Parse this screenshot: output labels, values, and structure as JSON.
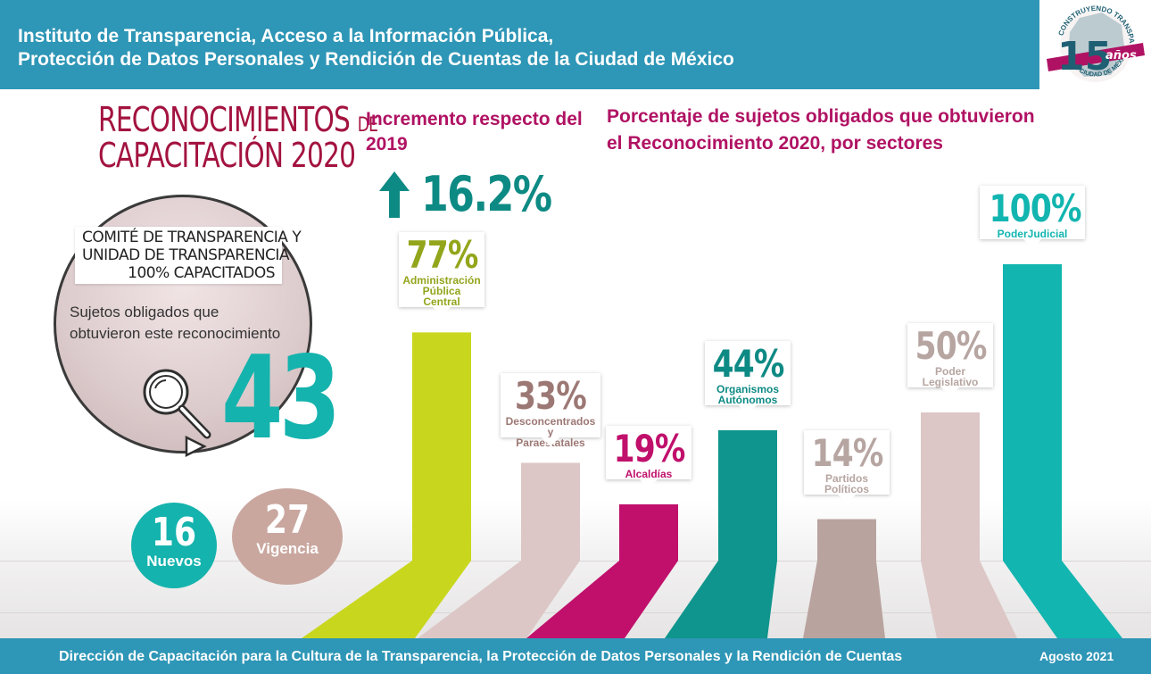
{
  "header": {
    "line1": "Instituto de Transparencia, Acceso a la Información Pública,",
    "line2": "Protección de Datos Personales y Rendición de Cuentas de la Ciudad de México"
  },
  "logo": {
    "number": "15",
    "sub": "años",
    "ring_top": "CONSTRUYENDO TRANSPARENCIA",
    "ring_bottom": "INFO CIUDAD DE MÉXICO"
  },
  "title": {
    "line1": "RECONOCIMIENTOS",
    "de": "DE",
    "line2": "CAPACITACIÓN 2020"
  },
  "committee": {
    "line1": "COMITÉ DE TRANSPARENCIA Y",
    "line2": "UNIDAD DE TRANSPARENCIA",
    "line3": "100% CAPACITADOS"
  },
  "subjects": {
    "line1": "Sujetos obligados que",
    "line2": "obtuvieron este reconocimiento",
    "total": "43"
  },
  "breakdown": {
    "nuevos_value": "16",
    "nuevos_label": "Nuevos",
    "vigencia_value": "27",
    "vigencia_label": "Vigencia"
  },
  "increment": {
    "title": "Incremento respecto del 2019",
    "value": "16.2%"
  },
  "colors": {
    "header": "#2e96b6",
    "accent": "#b01263",
    "teal": "#15b3ad"
  },
  "chart_data": {
    "type": "bar",
    "title": "Porcentaje de sujetos obligados que obtuvieron el Reconocimiento 2020, por sectores",
    "categories": [
      "Administración Pública Central",
      "Desconcentrados y Paraestatales",
      "Alcaldías",
      "Organismos Autónomos",
      "Partidos Políticos",
      "Poder Legislativo",
      "PoderJudicial"
    ],
    "values": [
      77,
      33,
      19,
      44,
      14,
      50,
      100
    ],
    "value_labels": [
      "77%",
      "33%",
      "19%",
      "44%",
      "14%",
      "50%",
      "100%"
    ],
    "label_lines": [
      [
        "Administración",
        "Pública",
        "Central"
      ],
      [
        "Desconcentrados y",
        "Paraestatales"
      ],
      [
        "Alcaldías"
      ],
      [
        "Organismos",
        "Autónomos"
      ],
      [
        "Partidos",
        "Políticos"
      ],
      [
        "Poder",
        "Legislativo"
      ],
      [
        "PoderJudicial"
      ]
    ],
    "colors": [
      "#c8d71e",
      "#dcc7c6",
      "#c0106c",
      "#0f958d",
      "#b9a39f",
      "#dcc7c6",
      "#12b5b0"
    ],
    "text_colors": [
      "#93a51b",
      "#9c7874",
      "#c0106c",
      "#0e8a84",
      "#b6a5a1",
      "#b6a5a1",
      "#12b5b0"
    ],
    "ylim": [
      0,
      100
    ]
  },
  "footer": {
    "text": "Dirección de Capacitación para la Cultura de la Transparencia, la Protección de Datos Personales y la Rendición de Cuentas",
    "date": "Agosto 2021"
  }
}
